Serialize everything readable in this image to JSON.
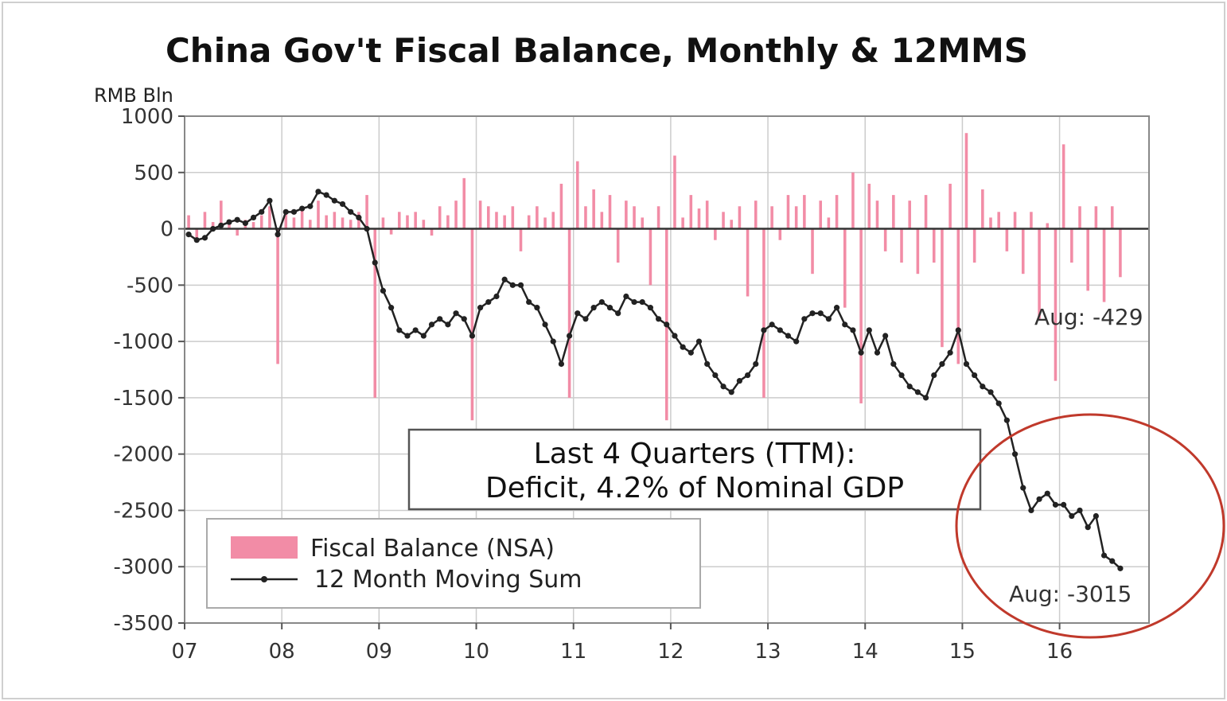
{
  "chart_data": {
    "type": "bar+line",
    "title": "China Gov't Fiscal Balance, Monthly & 12MMS",
    "ylabel": "RMB Bln",
    "ylim": [
      -3500,
      1000
    ],
    "yticks": [
      "1000",
      "500",
      "0",
      "-500",
      "-1000",
      "-1500",
      "-2000",
      "-2500",
      "-3000",
      "-3500"
    ],
    "ytick_values": [
      1000,
      500,
      0,
      -500,
      -1000,
      -1500,
      -2000,
      -2500,
      -3000,
      -3500
    ],
    "xticks": [
      "07",
      "08",
      "09",
      "10",
      "11",
      "12",
      "13",
      "14",
      "15",
      "16"
    ],
    "x_range": [
      2007,
      2016.92
    ],
    "grid": true,
    "legend_position": "bottom-left",
    "colors": {
      "bars": "#f28ca6",
      "line": "#222222",
      "grid": "#cccccc",
      "circle": "#c0392b",
      "zero": "#333333"
    },
    "series": [
      {
        "name": "Fiscal Balance (NSA)",
        "type": "bar",
        "start": 2007.0,
        "step": 0.08333,
        "values": [
          120,
          -80,
          150,
          60,
          250,
          40,
          -60,
          80,
          60,
          120,
          200,
          -1200,
          150,
          100,
          180,
          80,
          250,
          120,
          150,
          100,
          80,
          150,
          300,
          -1500,
          100,
          -50,
          150,
          120,
          150,
          80,
          -60,
          200,
          120,
          250,
          450,
          -1700,
          250,
          200,
          150,
          120,
          200,
          -200,
          120,
          200,
          100,
          150,
          400,
          -1500,
          600,
          200,
          350,
          150,
          300,
          -300,
          250,
          200,
          100,
          -500,
          200,
          -1700,
          650,
          100,
          300,
          180,
          250,
          -100,
          150,
          80,
          200,
          -600,
          250,
          -1500,
          200,
          -100,
          300,
          200,
          300,
          -400,
          250,
          100,
          300,
          -700,
          500,
          -1550,
          400,
          250,
          -200,
          300,
          -300,
          250,
          -400,
          300,
          -300,
          -1050,
          400,
          -1200,
          850,
          -300,
          350,
          100,
          150,
          -200,
          150,
          -400,
          150,
          -800,
          50,
          -1350,
          750,
          -300,
          200,
          -550,
          200,
          -650,
          200,
          -429
        ]
      },
      {
        "name": "12 Month Moving Sum",
        "type": "line",
        "start": 2007.0,
        "step": 0.08333,
        "values": [
          -50,
          -100,
          -80,
          0,
          30,
          60,
          80,
          50,
          100,
          150,
          250,
          -50,
          150,
          150,
          180,
          200,
          330,
          300,
          250,
          220,
          150,
          100,
          0,
          -300,
          -550,
          -700,
          -900,
          -950,
          -900,
          -950,
          -850,
          -800,
          -850,
          -750,
          -800,
          -950,
          -700,
          -650,
          -600,
          -450,
          -500,
          -500,
          -650,
          -700,
          -850,
          -1000,
          -1200,
          -950,
          -750,
          -800,
          -700,
          -650,
          -700,
          -750,
          -600,
          -650,
          -650,
          -700,
          -800,
          -850,
          -950,
          -1050,
          -1100,
          -1000,
          -1200,
          -1300,
          -1400,
          -1450,
          -1350,
          -1300,
          -1200,
          -900,
          -850,
          -900,
          -950,
          -1000,
          -800,
          -750,
          -750,
          -800,
          -700,
          -850,
          -900,
          -1100,
          -900,
          -1100,
          -950,
          -1200,
          -1300,
          -1400,
          -1450,
          -1500,
          -1300,
          -1200,
          -1100,
          -900,
          -1200,
          -1300,
          -1400,
          -1450,
          -1550,
          -1700,
          -2000,
          -2300,
          -2500,
          -2400,
          -2350,
          -2450,
          -2450,
          -2550,
          -2500,
          -2650,
          -2550,
          -2900,
          -2950,
          -3015
        ]
      }
    ],
    "annotations": [
      {
        "text": "Aug: -429",
        "series": "Fiscal Balance (NSA)"
      },
      {
        "text": "Aug: -3015",
        "series": "12 Month Moving Sum"
      }
    ],
    "textbox": {
      "line1": "Last 4 Quarters (TTM):",
      "line2": "Deficit, 4.2% of Nominal GDP"
    }
  }
}
